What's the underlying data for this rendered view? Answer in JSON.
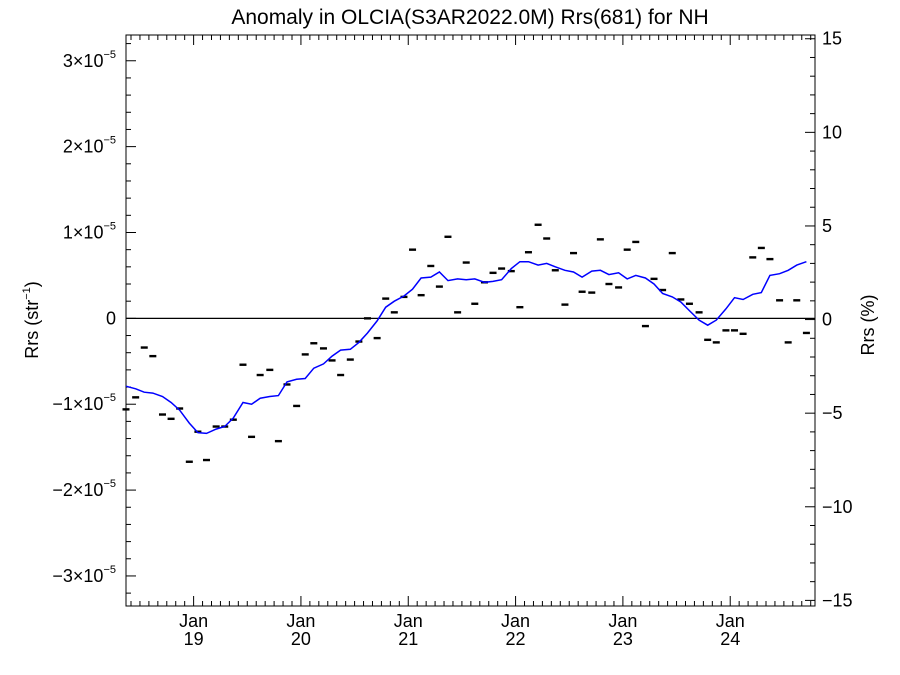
{
  "chart_data": {
    "type": "scatter",
    "title": "Anomaly in OLCIA(S3AR2022.0M) Rrs(681) for NH",
    "ylabel_left": {
      "base": "Rrs (str",
      "exp": "−1",
      "close": ")"
    },
    "ylabel_right": "Rrs (%)",
    "xlim": [
      2018.37,
      2024.79
    ],
    "ylim_left": [
      -3.35e-05,
      3.3e-05
    ],
    "ylim_right": [
      -15.3,
      15.2
    ],
    "x_ticks": [
      {
        "x": 2019.0,
        "month": "Jan",
        "year": "19"
      },
      {
        "x": 2020.0,
        "month": "Jan",
        "year": "20"
      },
      {
        "x": 2021.0,
        "month": "Jan",
        "year": "21"
      },
      {
        "x": 2022.0,
        "month": "Jan",
        "year": "22"
      },
      {
        "x": 2023.0,
        "month": "Jan",
        "year": "23"
      },
      {
        "x": 2024.0,
        "month": "Jan",
        "year": "24"
      }
    ],
    "y_ticks_left": [
      {
        "value": 3e-05,
        "mant": "3×10",
        "exp": "−5"
      },
      {
        "value": 2e-05,
        "mant": "2×10",
        "exp": "−5"
      },
      {
        "value": 1e-05,
        "mant": "1×10",
        "exp": "−5"
      },
      {
        "value": 0,
        "mant": "0",
        "exp": ""
      },
      {
        "value": -1e-05,
        "mant": "−1×10",
        "exp": "−5"
      },
      {
        "value": -2e-05,
        "mant": "−2×10",
        "exp": "−5"
      },
      {
        "value": -3e-05,
        "mant": "−3×10",
        "exp": "−5"
      }
    ],
    "y_ticks_right": [
      {
        "value": 15,
        "label": "15"
      },
      {
        "value": 10,
        "label": "10"
      },
      {
        "value": 5,
        "label": "5"
      },
      {
        "value": 0,
        "label": "0"
      },
      {
        "value": -5,
        "label": "−5"
      },
      {
        "value": -10,
        "label": "−10"
      },
      {
        "value": -15,
        "label": "−15"
      }
    ],
    "zero_line": true,
    "grid": false,
    "series": [
      {
        "type": "scatter",
        "marker": "dash",
        "color": "#000000",
        "points": [
          [
            2018.37,
            -1.06e-05
          ],
          [
            2018.46,
            -9.2e-06
          ],
          [
            2018.54,
            -3.4e-06
          ],
          [
            2018.62,
            -4.4e-06
          ],
          [
            2018.71,
            -1.12e-05
          ],
          [
            2018.79,
            -1.17e-05
          ],
          [
            2018.87,
            -1.05e-05
          ],
          [
            2018.96,
            -1.67e-05
          ],
          [
            2019.04,
            -1.32e-05
          ],
          [
            2019.12,
            -1.65e-05
          ],
          [
            2019.21,
            -1.26e-05
          ],
          [
            2019.29,
            -1.26e-05
          ],
          [
            2019.37,
            -1.18e-05
          ],
          [
            2019.46,
            -5.4e-06
          ],
          [
            2019.54,
            -1.38e-05
          ],
          [
            2019.62,
            -6.6e-06
          ],
          [
            2019.71,
            -6e-06
          ],
          [
            2019.79,
            -1.43e-05
          ],
          [
            2019.87,
            -7.7e-06
          ],
          [
            2019.96,
            -1.02e-05
          ],
          [
            2020.04,
            -4.2e-06
          ],
          [
            2020.12,
            -2.9e-06
          ],
          [
            2020.21,
            -3.5e-06
          ],
          [
            2020.29,
            -4.9e-06
          ],
          [
            2020.37,
            -6.6e-06
          ],
          [
            2020.46,
            -4.8e-06
          ],
          [
            2020.54,
            -2.7e-06
          ],
          [
            2020.62,
            0.0
          ],
          [
            2020.71,
            -2.3e-06
          ],
          [
            2020.79,
            2.3e-06
          ],
          [
            2020.87,
            7e-07
          ],
          [
            2020.96,
            2.5e-06
          ],
          [
            2021.04,
            8e-06
          ],
          [
            2021.12,
            2.7e-06
          ],
          [
            2021.21,
            6.1e-06
          ],
          [
            2021.29,
            3.7e-06
          ],
          [
            2021.37,
            9.5e-06
          ],
          [
            2021.46,
            7e-07
          ],
          [
            2021.54,
            6.5e-06
          ],
          [
            2021.62,
            1.7e-06
          ],
          [
            2021.71,
            4.2e-06
          ],
          [
            2021.79,
            5.3e-06
          ],
          [
            2021.87,
            5.8e-06
          ],
          [
            2021.96,
            5.5e-06
          ],
          [
            2022.04,
            1.3e-06
          ],
          [
            2022.12,
            7.7e-06
          ],
          [
            2022.21,
            1.09e-05
          ],
          [
            2022.29,
            9.3e-06
          ],
          [
            2022.37,
            5.6e-06
          ],
          [
            2022.46,
            1.6e-06
          ],
          [
            2022.54,
            7.6e-06
          ],
          [
            2022.62,
            3.1e-06
          ],
          [
            2022.71,
            3e-06
          ],
          [
            2022.79,
            9.2e-06
          ],
          [
            2022.87,
            4e-06
          ],
          [
            2022.96,
            3.6e-06
          ],
          [
            2023.04,
            8e-06
          ],
          [
            2023.12,
            8.9e-06
          ],
          [
            2023.21,
            -9e-07
          ],
          [
            2023.29,
            4.6e-06
          ],
          [
            2023.37,
            3.3e-06
          ],
          [
            2023.46,
            7.6e-06
          ],
          [
            2023.54,
            2.2e-06
          ],
          [
            2023.62,
            1.7e-06
          ],
          [
            2023.71,
            7e-07
          ],
          [
            2023.79,
            -2.5e-06
          ],
          [
            2023.87,
            -2.8e-06
          ],
          [
            2023.96,
            -1.4e-06
          ],
          [
            2024.04,
            -1.4e-06
          ],
          [
            2024.12,
            -1.8e-06
          ],
          [
            2024.21,
            7.1e-06
          ],
          [
            2024.29,
            8.2e-06
          ],
          [
            2024.37,
            6.9e-06
          ],
          [
            2024.46,
            2.1e-06
          ],
          [
            2024.54,
            -2.8e-06
          ],
          [
            2024.62,
            2.1e-06
          ],
          [
            2024.71,
            -1.7e-06
          ]
        ]
      },
      {
        "type": "line",
        "color": "#0000ff",
        "points": [
          [
            2018.37,
            -7.9e-06
          ],
          [
            2018.46,
            -8.2e-06
          ],
          [
            2018.54,
            -8.6e-06
          ],
          [
            2018.62,
            -8.7e-06
          ],
          [
            2018.71,
            -9.1e-06
          ],
          [
            2018.79,
            -9.8e-06
          ],
          [
            2018.87,
            -1.07e-05
          ],
          [
            2018.96,
            -1.22e-05
          ],
          [
            2019.04,
            -1.33e-05
          ],
          [
            2019.12,
            -1.34e-05
          ],
          [
            2019.21,
            -1.29e-05
          ],
          [
            2019.29,
            -1.26e-05
          ],
          [
            2019.37,
            -1.16e-05
          ],
          [
            2019.46,
            -9.8e-06
          ],
          [
            2019.54,
            -1e-05
          ],
          [
            2019.62,
            -9.3e-06
          ],
          [
            2019.71,
            -9.1e-06
          ],
          [
            2019.79,
            -9e-06
          ],
          [
            2019.87,
            -7.4e-06
          ],
          [
            2019.96,
            -7.1e-06
          ],
          [
            2020.04,
            -7e-06
          ],
          [
            2020.12,
            -5.8e-06
          ],
          [
            2020.21,
            -5.3e-06
          ],
          [
            2020.29,
            -4.4e-06
          ],
          [
            2020.37,
            -3.7e-06
          ],
          [
            2020.46,
            -3.6e-06
          ],
          [
            2020.54,
            -2.8e-06
          ],
          [
            2020.62,
            -1.7e-06
          ],
          [
            2020.71,
            -3e-07
          ],
          [
            2020.79,
            1.3e-06
          ],
          [
            2020.87,
            2e-06
          ],
          [
            2020.96,
            2.6e-06
          ],
          [
            2021.04,
            3.4e-06
          ],
          [
            2021.12,
            4.7e-06
          ],
          [
            2021.21,
            4.8e-06
          ],
          [
            2021.29,
            5.4e-06
          ],
          [
            2021.37,
            4.4e-06
          ],
          [
            2021.46,
            4.6e-06
          ],
          [
            2021.54,
            4.5e-06
          ],
          [
            2021.62,
            4.6e-06
          ],
          [
            2021.71,
            4.2e-06
          ],
          [
            2021.79,
            4.3e-06
          ],
          [
            2021.87,
            4.5e-06
          ],
          [
            2021.96,
            5.8e-06
          ],
          [
            2022.04,
            6.6e-06
          ],
          [
            2022.12,
            6.6e-06
          ],
          [
            2022.21,
            6.2e-06
          ],
          [
            2022.29,
            6.4e-06
          ],
          [
            2022.37,
            6e-06
          ],
          [
            2022.46,
            5.6e-06
          ],
          [
            2022.54,
            5.4e-06
          ],
          [
            2022.62,
            4.8e-06
          ],
          [
            2022.71,
            5.5e-06
          ],
          [
            2022.79,
            5.6e-06
          ],
          [
            2022.87,
            5.1e-06
          ],
          [
            2022.96,
            5.3e-06
          ],
          [
            2023.04,
            4.6e-06
          ],
          [
            2023.12,
            5e-06
          ],
          [
            2023.21,
            4.7e-06
          ],
          [
            2023.29,
            4e-06
          ],
          [
            2023.37,
            2.9e-06
          ],
          [
            2023.46,
            2.5e-06
          ],
          [
            2023.54,
            1.9e-06
          ],
          [
            2023.62,
            9e-07
          ],
          [
            2023.71,
            -2e-07
          ],
          [
            2023.79,
            -8e-07
          ],
          [
            2023.87,
            -2e-07
          ],
          [
            2023.96,
            1.1e-06
          ],
          [
            2024.04,
            2.4e-06
          ],
          [
            2024.12,
            2.2e-06
          ],
          [
            2024.21,
            2.8e-06
          ],
          [
            2024.29,
            3e-06
          ],
          [
            2024.37,
            5e-06
          ],
          [
            2024.46,
            5.2e-06
          ],
          [
            2024.54,
            5.6e-06
          ],
          [
            2024.62,
            6.2e-06
          ],
          [
            2024.71,
            6.6e-06
          ]
        ]
      }
    ]
  }
}
